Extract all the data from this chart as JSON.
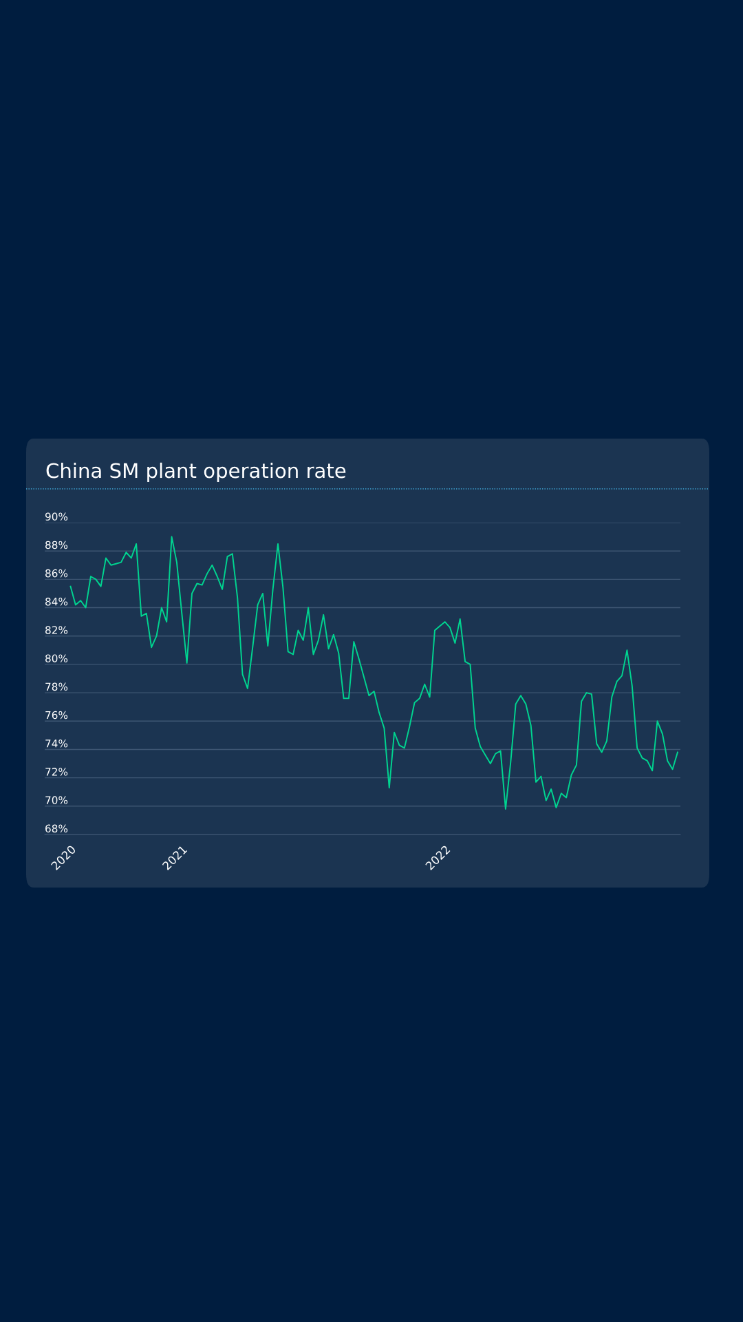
{
  "chart_data": {
    "type": "line",
    "title": "China SM plant operation rate",
    "categories": [
      "2020",
      null,
      null,
      null,
      null,
      null,
      null,
      null,
      null,
      null,
      null,
      null,
      null,
      null,
      null,
      null,
      null,
      null,
      null,
      null,
      null,
      null,
      "2021",
      null,
      null,
      null,
      null,
      null,
      null,
      null,
      null,
      null,
      null,
      null,
      null,
      null,
      null,
      null,
      null,
      null,
      null,
      null,
      null,
      null,
      null,
      null,
      null,
      null,
      null,
      null,
      null,
      null,
      null,
      null,
      null,
      null,
      null,
      null,
      null,
      null,
      null,
      null,
      null,
      null,
      null,
      null,
      null,
      null,
      null,
      null,
      null,
      null,
      null,
      null,
      "2022",
      null,
      null,
      null,
      null,
      null,
      null,
      null,
      null,
      null,
      null,
      null,
      null,
      null,
      null,
      null,
      null,
      null,
      null,
      null,
      null,
      null,
      null,
      null,
      null,
      null,
      null,
      null,
      null,
      null,
      null,
      null,
      null,
      null,
      null,
      null,
      null,
      null,
      null,
      null,
      null,
      null,
      null,
      null,
      null,
      null,
      null
    ],
    "series": [
      {
        "color": "#00d490",
        "values": [
          85.5,
          84.2,
          84.5,
          84.0,
          86.2,
          86.0,
          85.5,
          87.5,
          87.0,
          87.1,
          87.2,
          87.9,
          87.5,
          88.5,
          83.4,
          83.6,
          81.2,
          82.0,
          84.0,
          83.0,
          89.0,
          87.2,
          83.6,
          80.1,
          85.0,
          85.7,
          85.6,
          86.4,
          87.0,
          86.2,
          85.3,
          87.6,
          87.8,
          84.7,
          79.3,
          78.3,
          81.2,
          84.2,
          85.0,
          81.3,
          85.3,
          88.5,
          85.4,
          80.9,
          80.7,
          82.4,
          81.7,
          84.0,
          80.7,
          81.7,
          83.5,
          81.1,
          82.1,
          80.8,
          77.6,
          77.6,
          81.6,
          80.4,
          79.1,
          77.8,
          78.1,
          76.6,
          75.5,
          71.3,
          75.2,
          74.3,
          74.1,
          75.6,
          77.3,
          77.6,
          78.6,
          77.7,
          82.4,
          82.7,
          83.0,
          82.6,
          81.5,
          83.2,
          80.2,
          80.0,
          75.5,
          74.2,
          73.6,
          73.0,
          73.7,
          73.9,
          69.8,
          73.1,
          77.2,
          77.8,
          77.2,
          75.7,
          71.7,
          72.1,
          70.4,
          71.2,
          69.9,
          70.9,
          70.6,
          72.2,
          72.9,
          77.4,
          78.0,
          77.9,
          74.4,
          73.8,
          74.6,
          77.7,
          78.8,
          79.2,
          81.0,
          78.5,
          74.1,
          73.4,
          73.2,
          72.5,
          76.0,
          75.1,
          73.2,
          72.6,
          73.8
        ]
      }
    ],
    "ylim": [
      68,
      90
    ],
    "yticks": [
      {
        "value": 68,
        "label": "68%"
      },
      {
        "value": 70,
        "label": "70%"
      },
      {
        "value": 72,
        "label": "72%"
      },
      {
        "value": 74,
        "label": "74%"
      },
      {
        "value": 76,
        "label": "76%"
      },
      {
        "value": 78,
        "label": "78%"
      },
      {
        "value": 80,
        "label": "80%"
      },
      {
        "value": 82,
        "label": "82%"
      },
      {
        "value": 84,
        "label": "84%"
      },
      {
        "value": 86,
        "label": "86%"
      },
      {
        "value": 88,
        "label": "88%"
      },
      {
        "value": 90,
        "label": "90%"
      }
    ],
    "grid": "y",
    "marker": "none",
    "line_style": "solid"
  }
}
